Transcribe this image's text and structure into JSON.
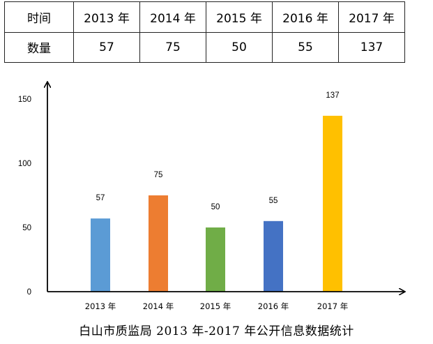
{
  "table": {
    "row1_header": "时间",
    "row2_header": "数量",
    "years": [
      "2013 年",
      "2014 年",
      "2015 年",
      "2016 年",
      "2017 年"
    ],
    "counts": [
      "57",
      "75",
      "50",
      "55",
      "137"
    ]
  },
  "chart_data": {
    "type": "bar",
    "title": "白山市质监局 2013 年-2017 年公开信息数据统计",
    "categories": [
      "2013 年",
      "2014 年",
      "2015 年",
      "2016 年",
      "2017 年"
    ],
    "values": [
      57,
      75,
      50,
      55,
      137
    ],
    "data_labels": [
      "57",
      "75",
      "50",
      "55",
      "137"
    ],
    "colors": [
      "#5b9bd5",
      "#ed7d31",
      "#70ad47",
      "#4472c4",
      "#ffc000"
    ],
    "yticks": [
      "0",
      "50",
      "100",
      "150"
    ],
    "ylim": [
      0,
      150
    ],
    "grid": false,
    "legend": "none"
  }
}
